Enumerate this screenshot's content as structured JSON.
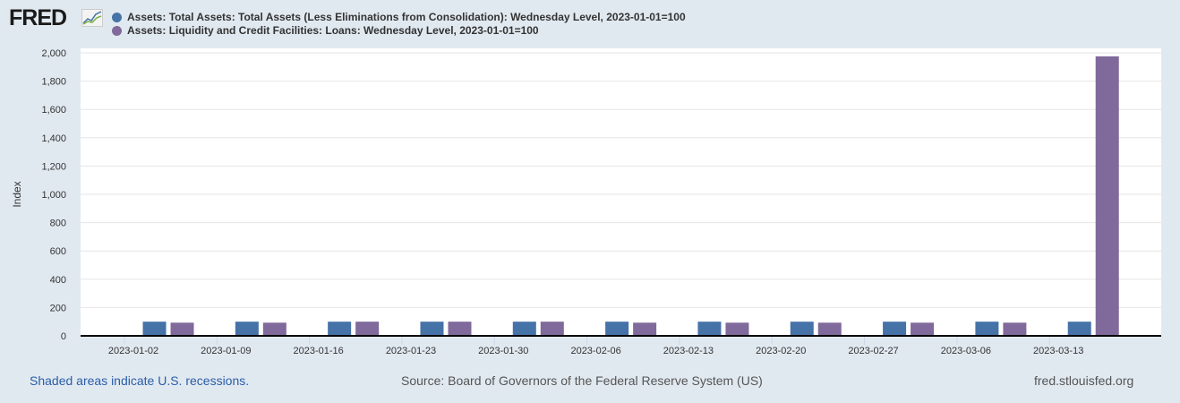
{
  "header": {
    "logo": "FRED"
  },
  "chart_data": {
    "type": "bar",
    "ylabel": "Index",
    "ylim": [
      0,
      2000
    ],
    "yticks": [
      0,
      200,
      400,
      600,
      800,
      1000,
      1200,
      1400,
      1600,
      1800,
      2000
    ],
    "ytick_labels": [
      "0",
      "200",
      "400",
      "600",
      "800",
      "1,000",
      "1,200",
      "1,400",
      "1,600",
      "1,800",
      "2,000"
    ],
    "xtick_labels": [
      "2023-01-02",
      "2023-01-09",
      "2023-01-16",
      "2023-01-23",
      "2023-01-30",
      "2023-02-06",
      "2023-02-13",
      "2023-02-20",
      "2023-02-27",
      "2023-03-06",
      "2023-03-13"
    ],
    "categories": [
      "2023-01-04",
      "2023-01-11",
      "2023-01-18",
      "2023-01-25",
      "2023-02-01",
      "2023-02-08",
      "2023-02-15",
      "2023-02-22",
      "2023-03-01",
      "2023-03-08",
      "2023-03-15"
    ],
    "series": [
      {
        "name": "Assets: Total Assets: Total Assets (Less Eliminations from Consolidation): Wednesday Level, 2023-01-01=100",
        "color": "#4572a7",
        "values": [
          100,
          100,
          100,
          100,
          100,
          100,
          100,
          100,
          100,
          100,
          100
        ]
      },
      {
        "name": "Assets: Liquidity and Credit Facilities: Loans: Wednesday Level, 2023-01-01=100",
        "color": "#80699b",
        "values": [
          93,
          93,
          100,
          100,
          100,
          93,
          93,
          93,
          93,
          93,
          1975
        ]
      }
    ],
    "legend": "top-left"
  },
  "footer": {
    "recessions": "Shaded areas indicate U.S. recessions.",
    "source": "Source: Board of Governors of the Federal Reserve System (US)",
    "site": "fred.stlouisfed.org"
  }
}
